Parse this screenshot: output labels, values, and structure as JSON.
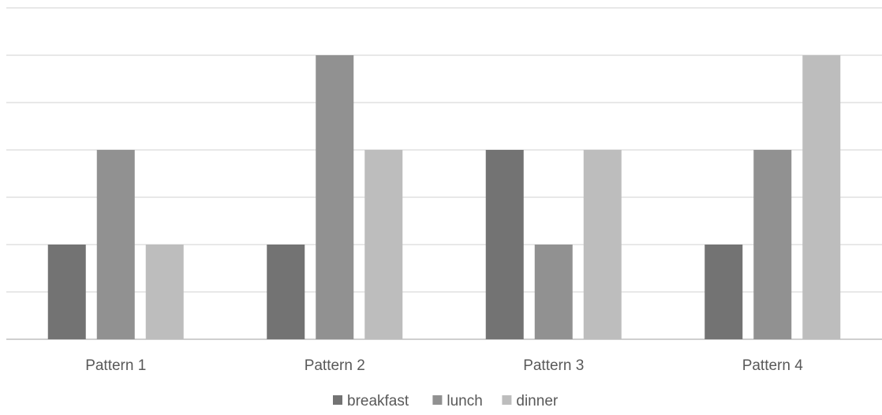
{
  "chart_data": {
    "type": "bar",
    "title": "",
    "xlabel": "",
    "ylabel": "",
    "categories": [
      "Pattern 1",
      "Pattern 2",
      "Pattern 3",
      "Pattern 4"
    ],
    "series": [
      {
        "name": "breakfast",
        "color": "#737373",
        "values": [
          2,
          2,
          4,
          2
        ]
      },
      {
        "name": "lunch",
        "color": "#919191",
        "values": [
          4,
          6,
          2,
          4
        ]
      },
      {
        "name": "dinner",
        "color": "#bdbdbd",
        "values": [
          2,
          4,
          4,
          6
        ]
      }
    ],
    "ylim": [
      0,
      7
    ],
    "gridlines": true,
    "y_tick_labels_shown": false,
    "legend_position": "bottom"
  }
}
